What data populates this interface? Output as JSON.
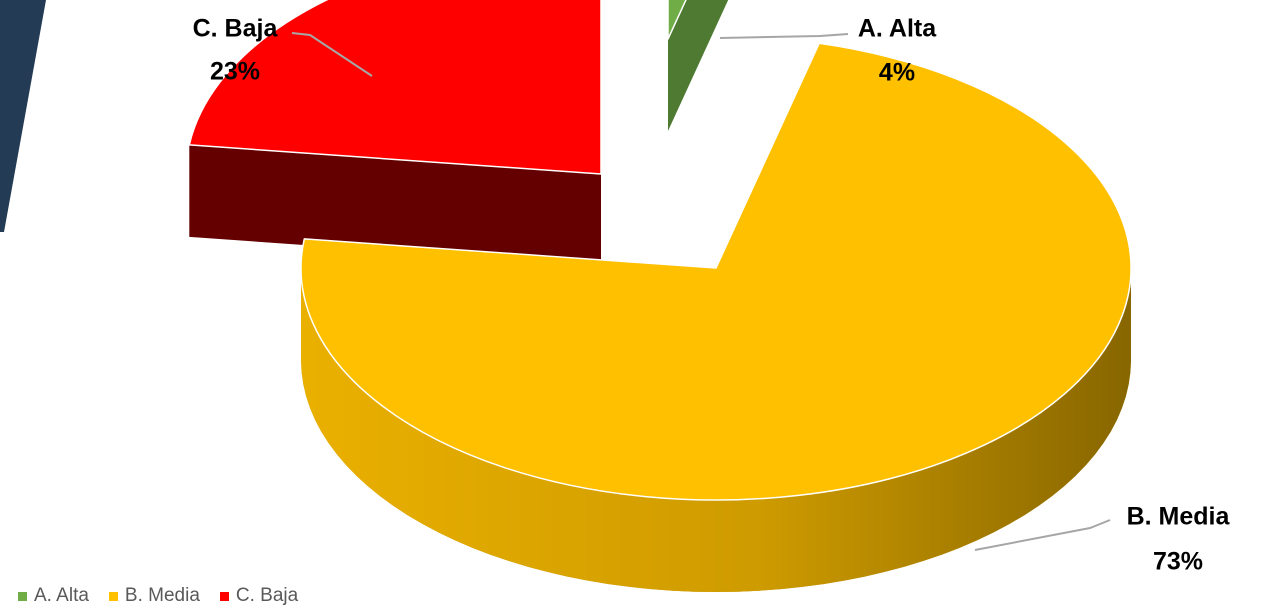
{
  "chart_data": {
    "type": "pie",
    "three_d": true,
    "exploded": true,
    "start_angle_deg": 0,
    "direction": "clockwise",
    "categories": [
      "A. Alta",
      "B. Media",
      "C. Baja"
    ],
    "values": [
      4,
      73,
      23
    ],
    "value_labels": [
      "4%",
      "73%",
      "23%"
    ],
    "colors": [
      "#70AD47",
      "#FFC000",
      "#FF0000"
    ],
    "side_colors": [
      "#4E7A32",
      "#B38700",
      "#640000"
    ],
    "legend_position": "bottom-left",
    "title": ""
  }
}
